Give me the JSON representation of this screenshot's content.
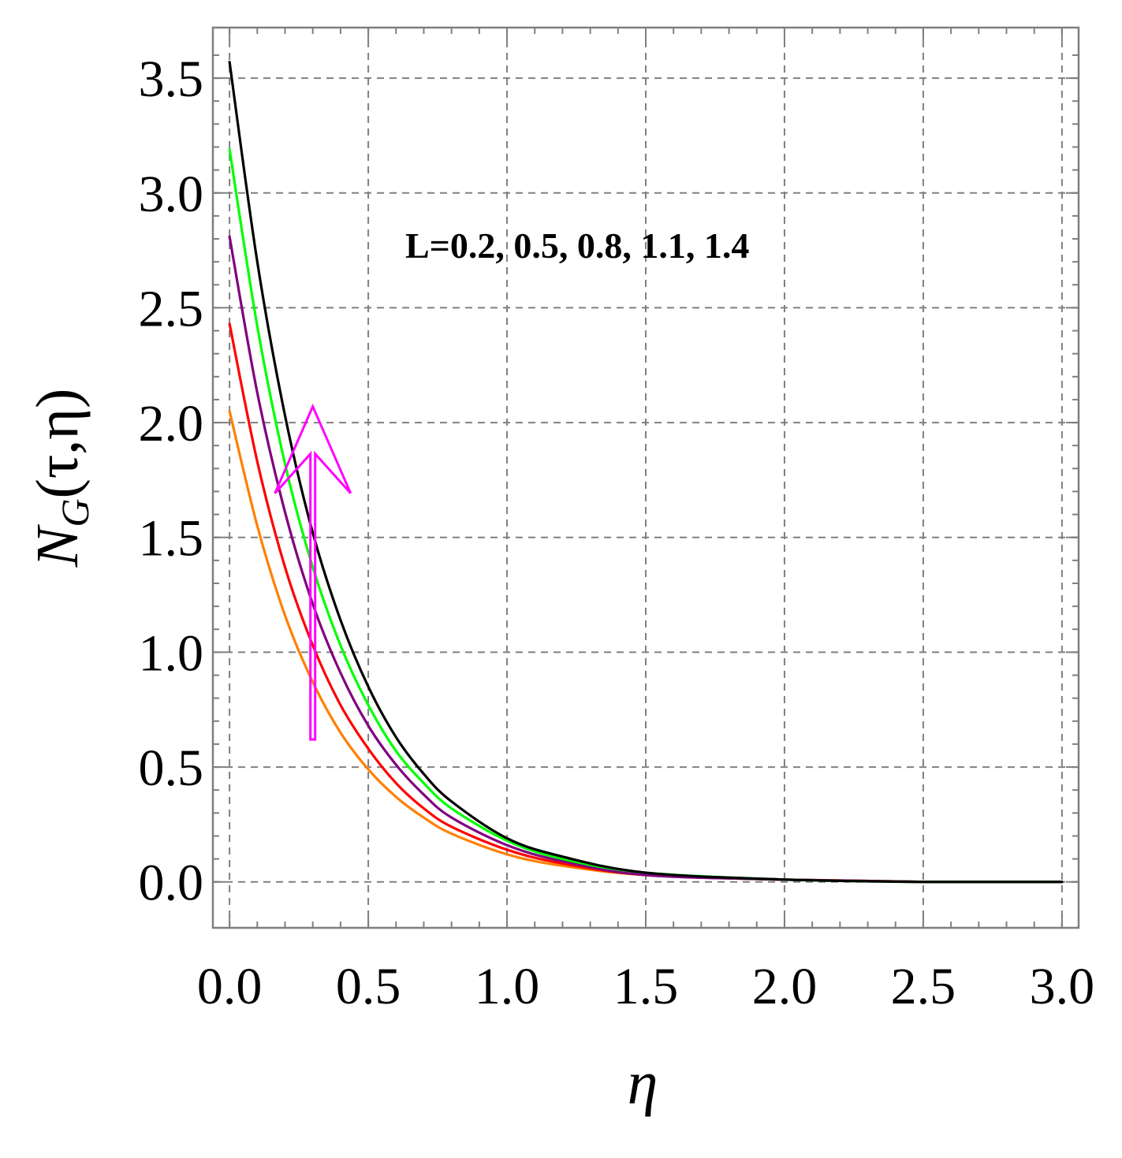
{
  "chart_data": {
    "type": "line",
    "title": "",
    "xlabel": "η",
    "ylabel_main": "N",
    "ylabel_sub": "G",
    "ylabel_args": "(τ,η)",
    "xlim": [
      -0.06,
      3.06
    ],
    "ylim": [
      -0.2,
      3.72
    ],
    "x_ticks": [
      0.0,
      0.5,
      1.0,
      1.5,
      2.0,
      2.5,
      3.0
    ],
    "x_tick_labels": [
      "0.0",
      "0.5",
      "1.0",
      "1.5",
      "2.0",
      "2.5",
      "3.0"
    ],
    "y_ticks": [
      0.0,
      0.5,
      1.0,
      1.5,
      2.0,
      2.5,
      3.0,
      3.5
    ],
    "y_tick_labels": [
      "0.0",
      "0.5",
      "1.0",
      "1.5",
      "2.0",
      "2.5",
      "3.0",
      "3.5"
    ],
    "grid": true,
    "annotation": "L=0.2, 0.5, 0.8, 1.1, 1.4",
    "arrow": {
      "direction": "up",
      "color": "#ff00ff",
      "x": 0.3,
      "y_from": 0.62,
      "y_to": 2.07
    },
    "series": [
      {
        "color": "#ff8000",
        "values": [
          [
            0.0,
            2.05
          ],
          [
            0.1,
            1.55
          ],
          [
            0.2,
            1.16
          ],
          [
            0.3,
            0.87
          ],
          [
            0.4,
            0.65
          ],
          [
            0.5,
            0.49
          ],
          [
            0.6,
            0.37
          ],
          [
            0.7,
            0.28
          ],
          [
            0.8,
            0.21
          ],
          [
            1.0,
            0.12
          ],
          [
            1.2,
            0.07
          ],
          [
            1.5,
            0.03
          ],
          [
            2.0,
            0.01
          ],
          [
            2.5,
            0.0
          ],
          [
            3.0,
            0.0
          ]
        ]
      },
      {
        "color": "#ff0000",
        "values": [
          [
            0.0,
            2.43
          ],
          [
            0.1,
            1.83
          ],
          [
            0.2,
            1.37
          ],
          [
            0.3,
            1.03
          ],
          [
            0.4,
            0.77
          ],
          [
            0.5,
            0.58
          ],
          [
            0.6,
            0.43
          ],
          [
            0.7,
            0.32
          ],
          [
            0.8,
            0.24
          ],
          [
            1.0,
            0.14
          ],
          [
            1.2,
            0.08
          ],
          [
            1.5,
            0.03
          ],
          [
            2.0,
            0.01
          ],
          [
            2.5,
            0.0
          ],
          [
            3.0,
            0.0
          ]
        ]
      },
      {
        "color": "#800080",
        "values": [
          [
            0.0,
            2.81
          ],
          [
            0.1,
            2.13
          ],
          [
            0.2,
            1.61
          ],
          [
            0.3,
            1.21
          ],
          [
            0.4,
            0.91
          ],
          [
            0.5,
            0.68
          ],
          [
            0.6,
            0.51
          ],
          [
            0.7,
            0.38
          ],
          [
            0.8,
            0.28
          ],
          [
            1.0,
            0.16
          ],
          [
            1.2,
            0.09
          ],
          [
            1.5,
            0.03
          ],
          [
            2.0,
            0.01
          ],
          [
            2.5,
            0.0
          ],
          [
            3.0,
            0.0
          ]
        ]
      },
      {
        "color": "#00ff00",
        "values": [
          [
            0.0,
            3.19
          ],
          [
            0.1,
            2.42
          ],
          [
            0.2,
            1.82
          ],
          [
            0.3,
            1.37
          ],
          [
            0.4,
            1.03
          ],
          [
            0.5,
            0.77
          ],
          [
            0.6,
            0.57
          ],
          [
            0.7,
            0.43
          ],
          [
            0.8,
            0.32
          ],
          [
            1.0,
            0.18
          ],
          [
            1.2,
            0.1
          ],
          [
            1.5,
            0.04
          ],
          [
            2.0,
            0.01
          ],
          [
            2.5,
            0.0
          ],
          [
            3.0,
            0.0
          ]
        ]
      },
      {
        "color": "#000000",
        "values": [
          [
            0.0,
            3.57
          ],
          [
            0.1,
            2.7
          ],
          [
            0.2,
            2.03
          ],
          [
            0.3,
            1.52
          ],
          [
            0.4,
            1.14
          ],
          [
            0.5,
            0.85
          ],
          [
            0.6,
            0.63
          ],
          [
            0.7,
            0.47
          ],
          [
            0.8,
            0.35
          ],
          [
            1.0,
            0.19
          ],
          [
            1.2,
            0.11
          ],
          [
            1.5,
            0.04
          ],
          [
            2.0,
            0.01
          ],
          [
            2.5,
            0.0
          ],
          [
            3.0,
            0.0
          ]
        ]
      }
    ]
  }
}
